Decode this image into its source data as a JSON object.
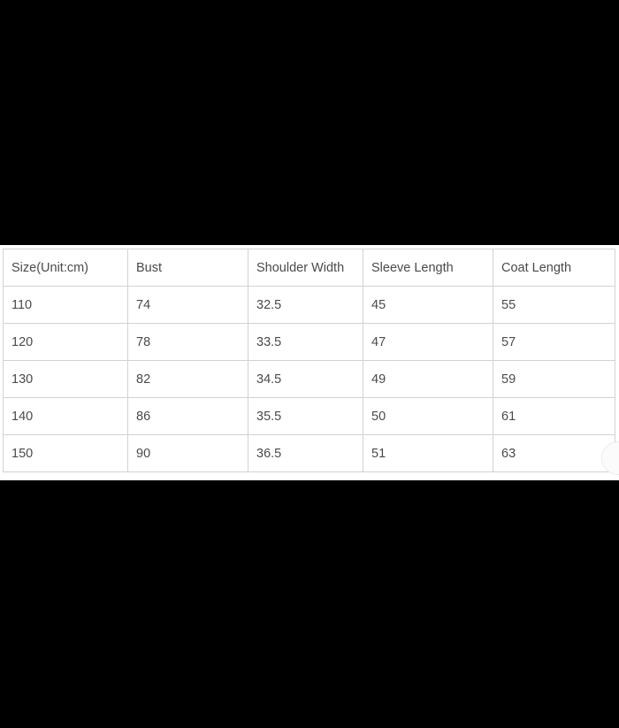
{
  "page": {
    "background_color": "#000000"
  },
  "size_chart": {
    "panel_background": "#ffffff",
    "border_color": "#d2d2d2",
    "text_color": "#4a4a4a",
    "columns": [
      "Size(Unit:cm)",
      "Bust",
      "Shoulder Width",
      "Sleeve Length",
      "Coat Length"
    ],
    "rows": [
      [
        "110",
        "74",
        "32.5",
        "45",
        "55"
      ],
      [
        "120",
        "78",
        "33.5",
        "47",
        "57"
      ],
      [
        "130",
        "82",
        "34.5",
        "49",
        "59"
      ],
      [
        "140",
        "86",
        "35.5",
        "50",
        "61"
      ],
      [
        "150",
        "90",
        "36.5",
        "51",
        "63"
      ]
    ]
  }
}
